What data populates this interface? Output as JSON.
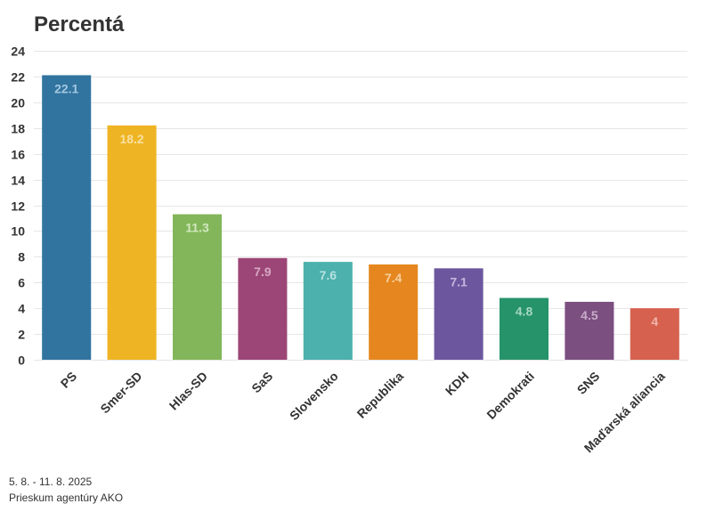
{
  "chart_data": {
    "type": "bar",
    "title": "Percentá",
    "xlabel": "",
    "ylabel": "",
    "ylim": [
      0,
      24
    ],
    "yticks": [
      0,
      2,
      4,
      6,
      8,
      10,
      12,
      14,
      16,
      18,
      20,
      22,
      24
    ],
    "grid": true,
    "categories": [
      "PS",
      "Smer-SD",
      "Hlas-SD",
      "SaS",
      "Slovensko",
      "Republika",
      "KDH",
      "Demokrati",
      "SNS",
      "Maďarská aliancia"
    ],
    "values": [
      22.1,
      18.2,
      11.3,
      7.9,
      7.6,
      7.4,
      7.1,
      4.8,
      4.5,
      4
    ],
    "value_labels": [
      "22.1",
      "18.2",
      "11.3",
      "7.9",
      "7.6",
      "7.4",
      "7.1",
      "4.8",
      "4.5",
      "4"
    ],
    "colors": [
      "#31749f",
      "#eeb423",
      "#83b65a",
      "#9c4677",
      "#4cb0ad",
      "#e5871e",
      "#6c579f",
      "#26936a",
      "#7b4f80",
      "#d7614f"
    ],
    "label_colors": [
      "#a4c8e1",
      "#f8e0a0",
      "#d2e8c0",
      "#d7a8c3",
      "#b6e2e1",
      "#f6cf9e",
      "#c3b6de",
      "#a4d7c1",
      "#c8acca",
      "#f0b5ab"
    ]
  },
  "footer": {
    "date_range": "5. 8. - 11. 8. 2025",
    "source": "Prieskum agentúry AKO"
  }
}
